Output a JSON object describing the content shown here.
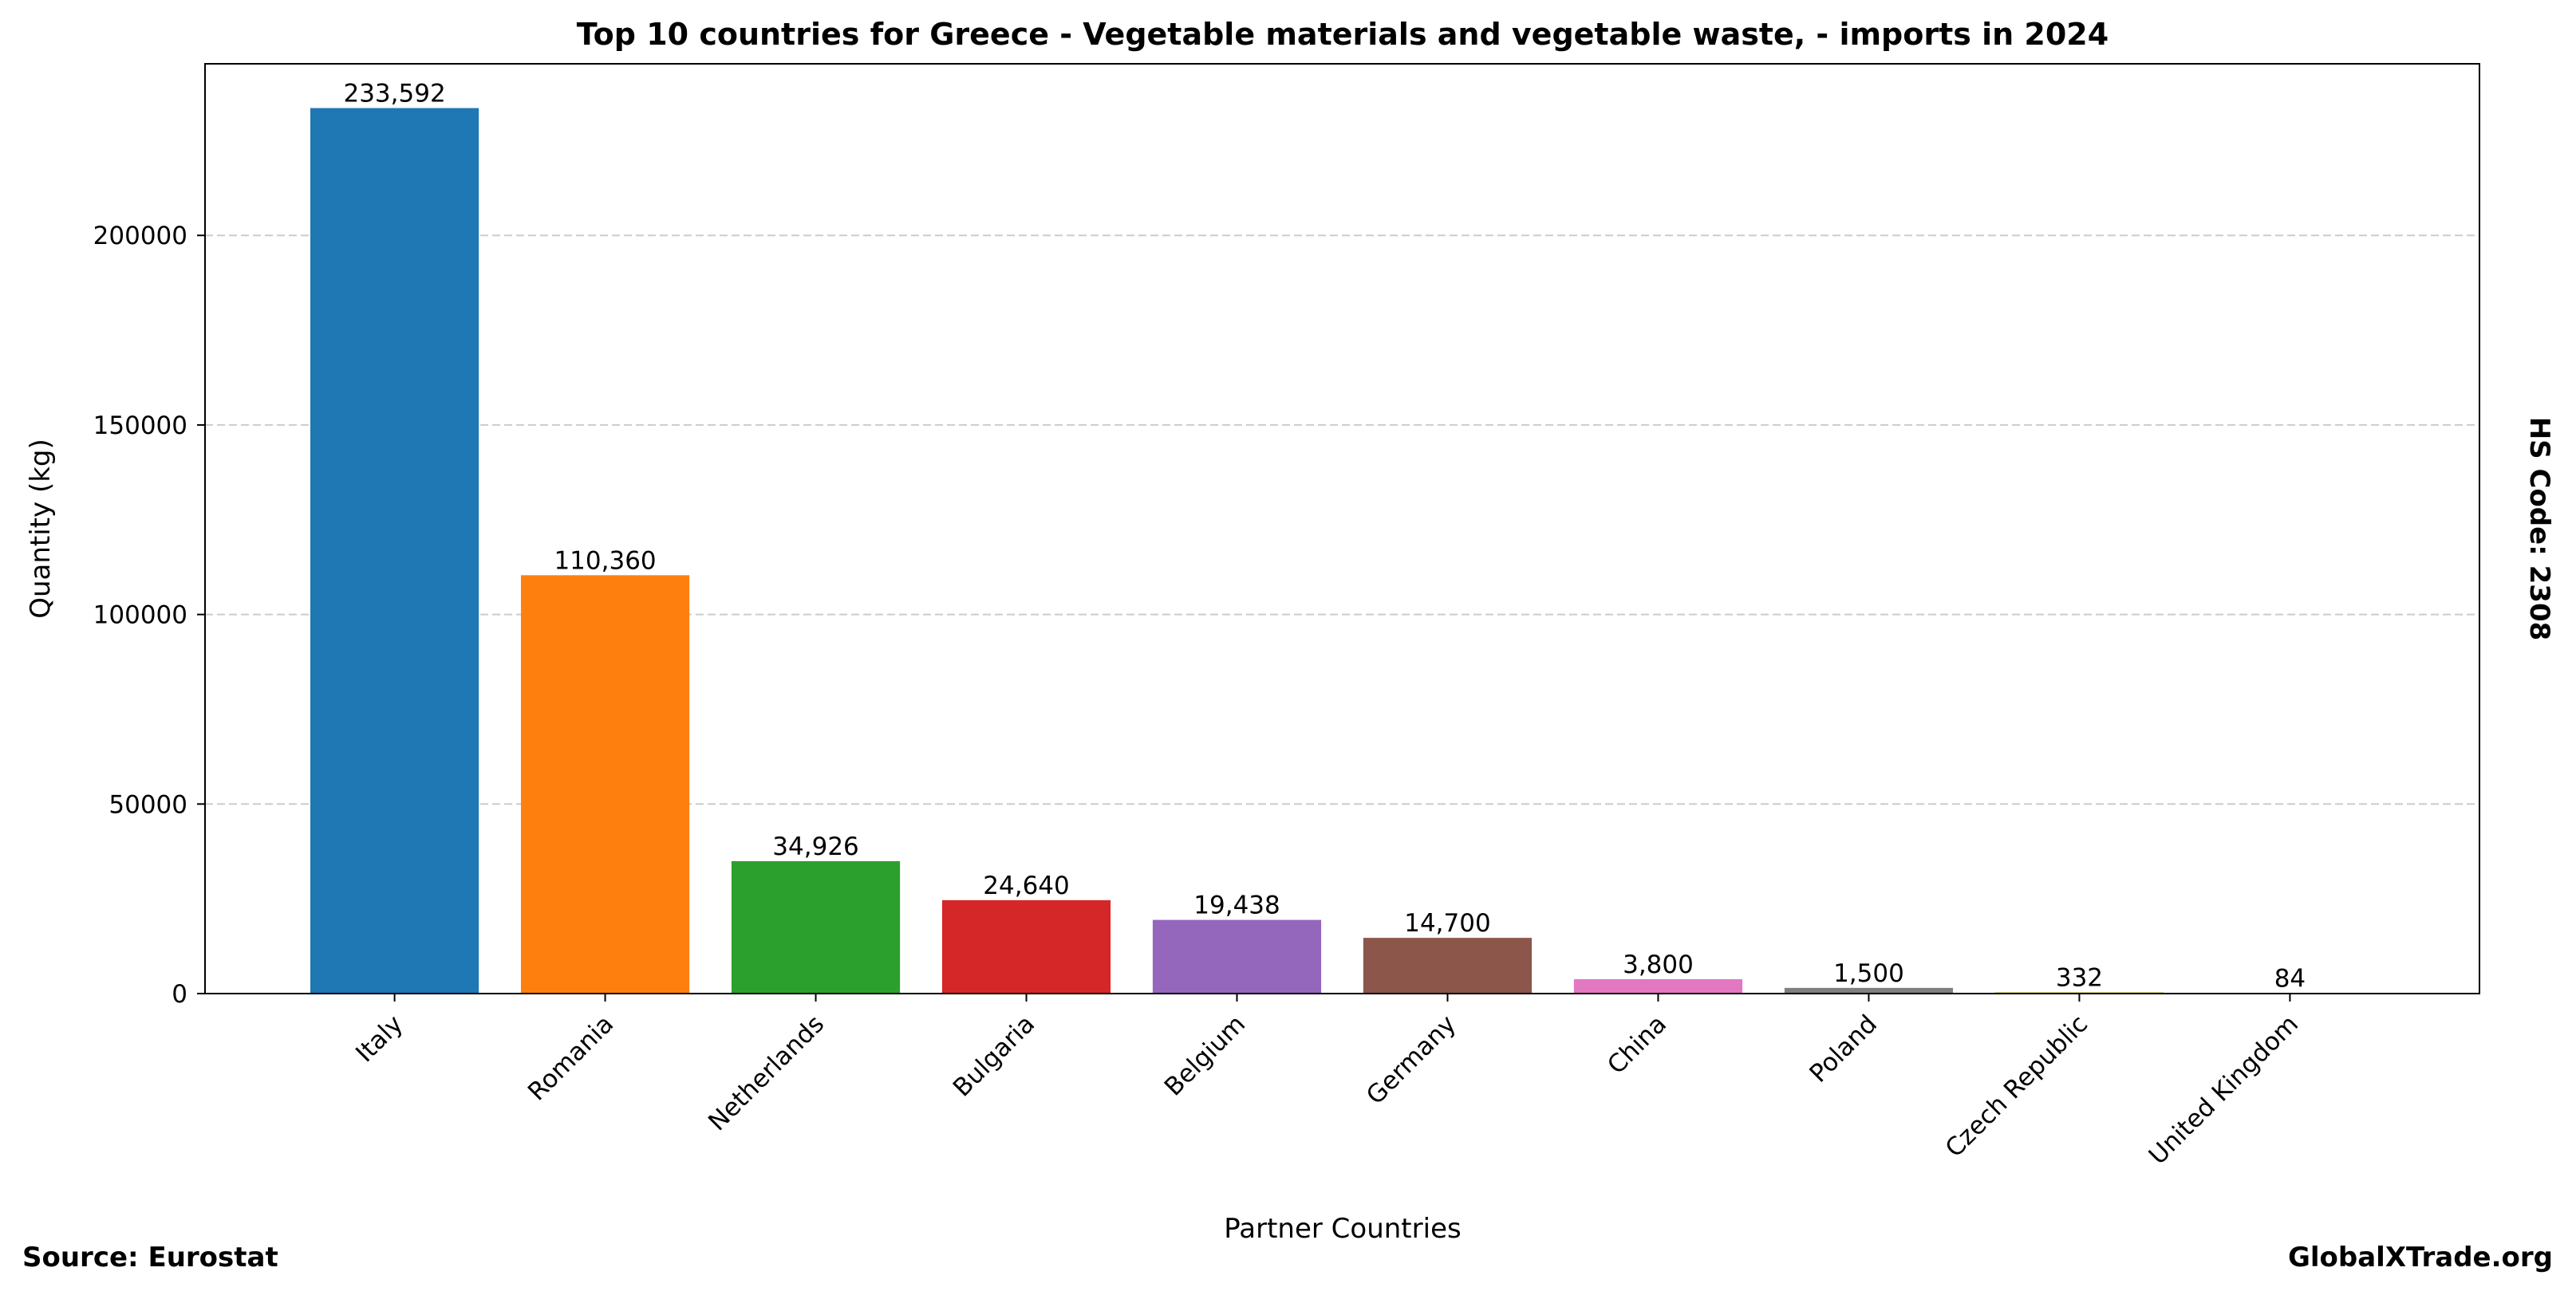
{
  "chart_data": {
    "type": "bar",
    "title": "Top 10 countries for Greece - Vegetable materials and vegetable waste, - imports in 2024",
    "xlabel": "Partner Countries",
    "ylabel": "Quantity (kg)",
    "side_note": "HS Code: 2308",
    "source": "Source: Eurostat",
    "brand": "GlobalXTrade.org",
    "categories": [
      "Italy",
      "Romania",
      "Netherlands",
      "Bulgaria",
      "Belgium",
      "Germany",
      "China",
      "Poland",
      "Czech Republic",
      "United Kingdom"
    ],
    "values": [
      233592,
      110360,
      34926,
      24640,
      19438,
      14700,
      3800,
      1500,
      332,
      84
    ],
    "value_labels": [
      "233,592",
      "110,360",
      "34,926",
      "24,640",
      "19,438",
      "14,700",
      "3,800",
      "1,500",
      "332",
      "84"
    ],
    "colors": [
      "#1f77b4",
      "#ff7f0e",
      "#2ca02c",
      "#d62728",
      "#9467bd",
      "#8c564b",
      "#e377c2",
      "#7f7f7f",
      "#bcbd22",
      "#17becf"
    ],
    "ylim": [
      0,
      245272
    ],
    "yticks": [
      0,
      50000,
      100000,
      150000,
      200000
    ],
    "grid": true
  }
}
